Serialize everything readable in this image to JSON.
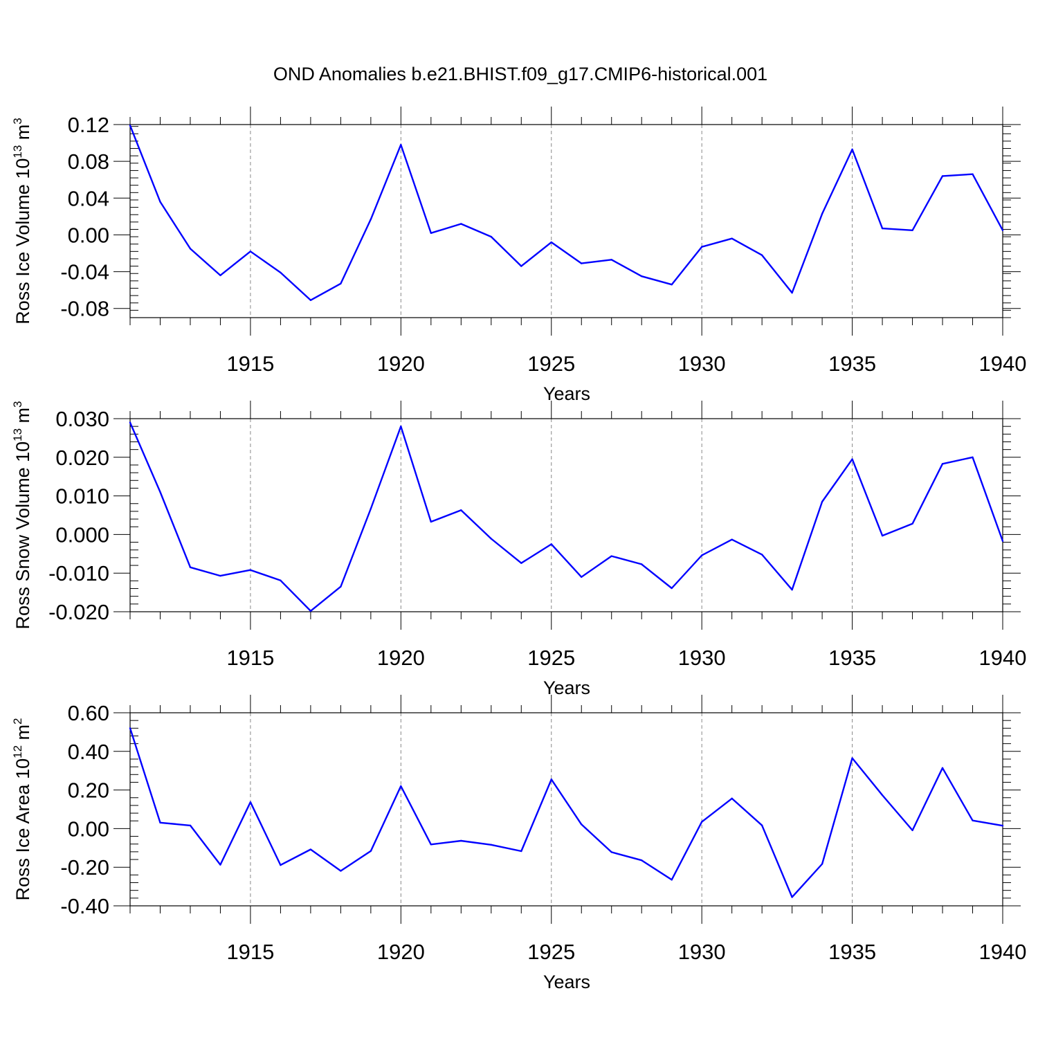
{
  "figure": {
    "title": "OND Anomalies b.e21.BHIST.f09_g17.CMIP6-historical.001"
  },
  "chart_data": [
    {
      "type": "line",
      "ylabel": "Ross Ice Volume 10",
      "ylabel_sup": "13",
      "ylabel_unit": " m",
      "ylabel_unit_sup": "3",
      "xlabel": "Years",
      "xlim": [
        1911,
        1940
      ],
      "ylim": [
        -0.09,
        0.12
      ],
      "yticks": [
        0.12,
        0.08,
        0.04,
        0.0,
        -0.04,
        -0.08
      ],
      "ytick_labels": [
        "0.12",
        "0.08",
        "0.04",
        "0.00",
        "-0.04",
        "-0.08"
      ],
      "xticks": [
        1915,
        1920,
        1925,
        1930,
        1935,
        1940
      ],
      "xtick_labels": [
        "1915",
        "1920",
        "1925",
        "1930",
        "1935",
        "1940"
      ],
      "grid": "vertical dashed at major x ticks",
      "color": "#0000ff",
      "x": [
        1911,
        1912,
        1913,
        1914,
        1915,
        1916,
        1917,
        1918,
        1919,
        1920,
        1921,
        1922,
        1923,
        1924,
        1925,
        1926,
        1927,
        1928,
        1929,
        1930,
        1931,
        1932,
        1933,
        1934,
        1935,
        1936,
        1937,
        1938,
        1939,
        1940
      ],
      "values": [
        0.119,
        0.036,
        -0.015,
        -0.044,
        -0.018,
        -0.041,
        -0.071,
        -0.053,
        0.017,
        0.098,
        0.002,
        0.012,
        -0.002,
        -0.034,
        -0.008,
        -0.031,
        -0.027,
        -0.045,
        -0.054,
        -0.013,
        -0.004,
        -0.022,
        -0.063,
        0.023,
        0.093,
        0.007,
        0.005,
        0.064,
        0.066,
        0.005
      ]
    },
    {
      "type": "line",
      "ylabel": "Ross Snow Volume 10",
      "ylabel_sup": "13",
      "ylabel_unit": " m",
      "ylabel_unit_sup": "3",
      "xlabel": "Years",
      "xlim": [
        1911,
        1940
      ],
      "ylim": [
        -0.02,
        0.03
      ],
      "yticks": [
        0.03,
        0.02,
        0.01,
        0.0,
        -0.01,
        -0.02
      ],
      "ytick_labels": [
        "0.030",
        "0.020",
        "0.010",
        "0.000",
        "-0.010",
        "-0.020"
      ],
      "xticks": [
        1915,
        1920,
        1925,
        1930,
        1935,
        1940
      ],
      "xtick_labels": [
        "1915",
        "1920",
        "1925",
        "1930",
        "1935",
        "1940"
      ],
      "grid": "vertical dashed at major x ticks",
      "color": "#0000ff",
      "x": [
        1911,
        1912,
        1913,
        1914,
        1915,
        1916,
        1917,
        1918,
        1919,
        1920,
        1921,
        1922,
        1923,
        1924,
        1925,
        1926,
        1927,
        1928,
        1929,
        1930,
        1931,
        1932,
        1933,
        1934,
        1935,
        1936,
        1937,
        1938,
        1939,
        1940
      ],
      "values": [
        0.029,
        0.011,
        -0.0085,
        -0.0107,
        -0.0092,
        -0.0119,
        -0.0198,
        -0.0135,
        0.0067,
        0.028,
        0.0033,
        0.0063,
        -0.0011,
        -0.0074,
        -0.0025,
        -0.011,
        -0.0056,
        -0.0077,
        -0.0139,
        -0.0054,
        -0.0013,
        -0.0052,
        -0.0143,
        0.0085,
        0.0195,
        -0.0003,
        0.0028,
        0.0183,
        0.02,
        -0.0017
      ]
    },
    {
      "type": "line",
      "ylabel": "Ross Ice Area 10",
      "ylabel_sup": "12",
      "ylabel_unit": " m",
      "ylabel_unit_sup": "2",
      "xlabel": "Years",
      "xlim": [
        1911,
        1940
      ],
      "ylim": [
        -0.4,
        0.6
      ],
      "yticks": [
        0.6,
        0.4,
        0.2,
        0.0,
        -0.2,
        -0.4
      ],
      "ytick_labels": [
        "0.60",
        "0.40",
        "0.20",
        "0.00",
        "-0.20",
        "-0.40"
      ],
      "xticks": [
        1915,
        1920,
        1925,
        1930,
        1935,
        1940
      ],
      "xtick_labels": [
        "1915",
        "1920",
        "1925",
        "1930",
        "1935",
        "1940"
      ],
      "grid": "vertical dashed at major x ticks",
      "color": "#0000ff",
      "x": [
        1911,
        1912,
        1913,
        1914,
        1915,
        1916,
        1917,
        1918,
        1919,
        1920,
        1921,
        1922,
        1923,
        1924,
        1925,
        1926,
        1927,
        1928,
        1929,
        1930,
        1931,
        1932,
        1933,
        1934,
        1935,
        1936,
        1937,
        1938,
        1939,
        1940
      ],
      "values": [
        0.52,
        0.031,
        0.016,
        -0.187,
        0.137,
        -0.189,
        -0.108,
        -0.219,
        -0.116,
        0.22,
        -0.082,
        -0.063,
        -0.084,
        -0.117,
        0.255,
        0.022,
        -0.122,
        -0.164,
        -0.265,
        0.035,
        0.156,
        0.017,
        -0.355,
        -0.183,
        0.365,
        0.173,
        -0.009,
        0.314,
        0.042,
        0.015
      ]
    }
  ]
}
